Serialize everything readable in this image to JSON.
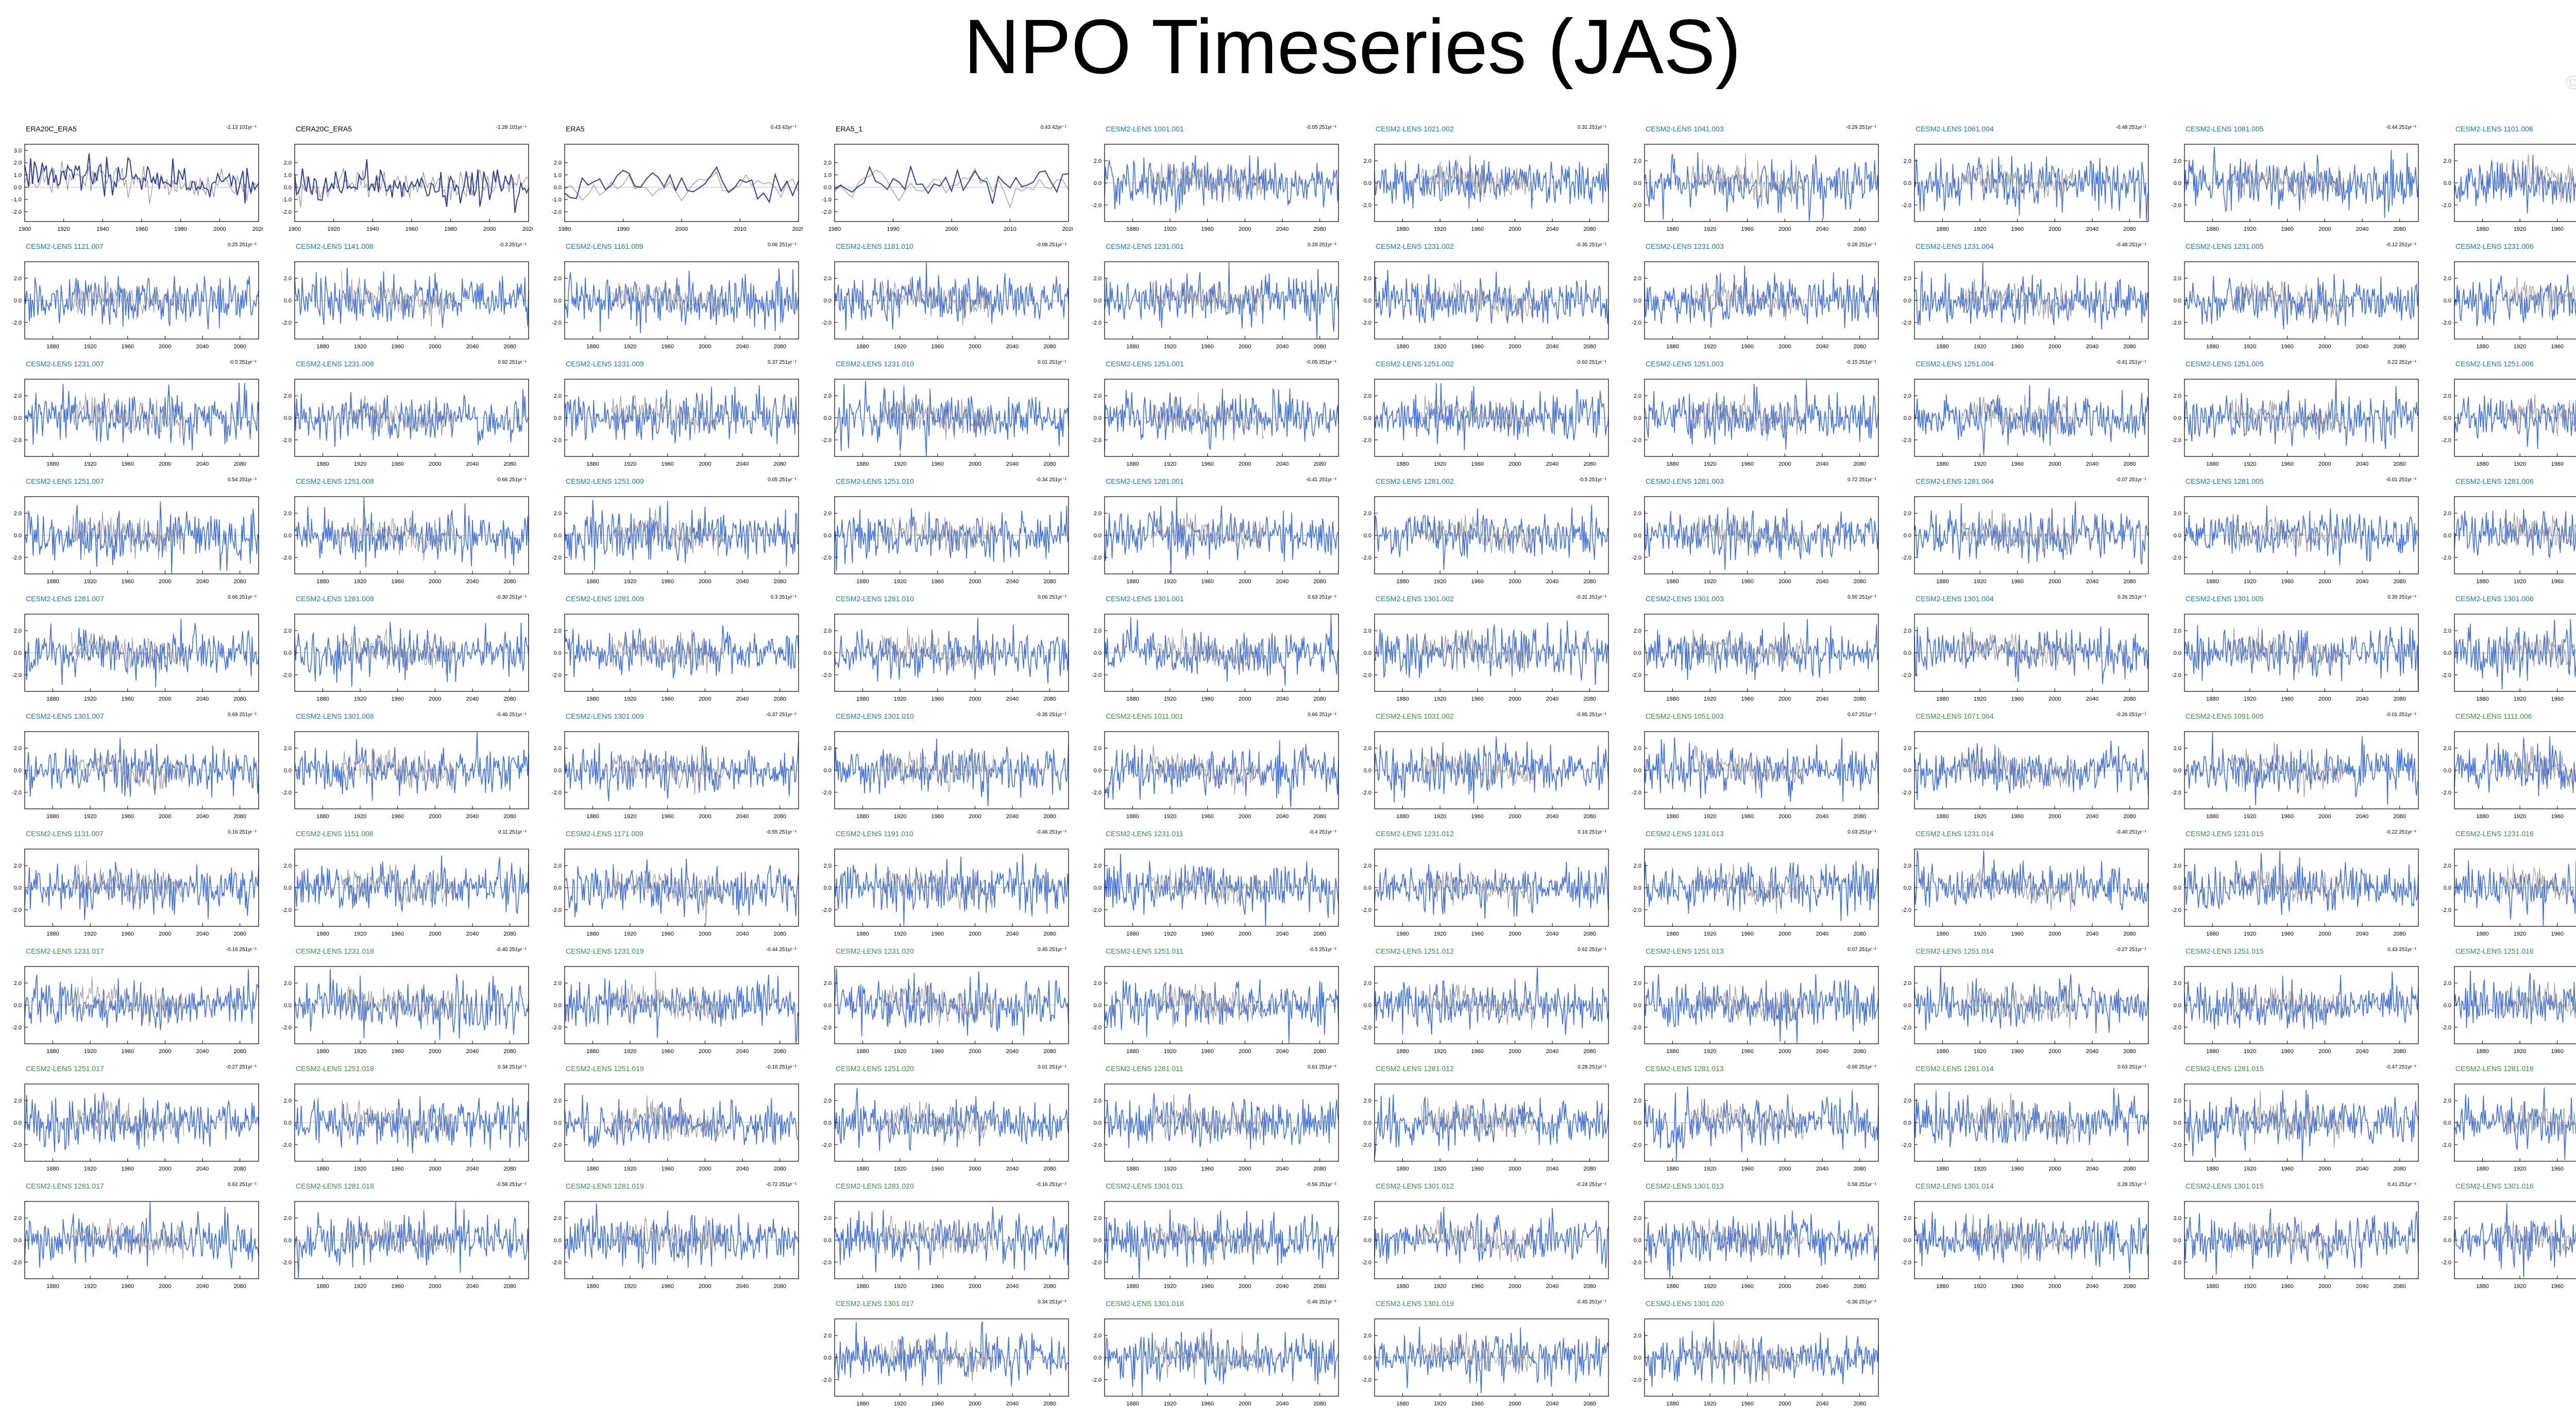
{
  "title": "NPO Timeseries (JAS)",
  "watermark": "© CVDP-LE",
  "colors": {
    "model": "#3f6fe0",
    "obs_model": "#2a3d9e",
    "overlay": "#909090",
    "zero": "#bdbdbd",
    "axis": "#000000"
  },
  "trend_unit": "51yr⁻¹",
  "chart_data": {
    "type": "line",
    "layout": "panel-grid",
    "panels": [
      {
        "name": "ERA20C_ERA5",
        "trend": "-2.13 101yr⁻¹",
        "xlim": [
          1900,
          2020
        ],
        "xticks": [
          1900,
          1920,
          1940,
          1960,
          1980,
          2000,
          2020
        ],
        "yticks": [
          -2.0,
          -1.0,
          0.0,
          1.0,
          2.0,
          3.0
        ],
        "style": "obs",
        "group": "obs",
        "row": 0,
        "col": 0
      },
      {
        "name": "CERA20C_ERA5",
        "trend": "-1.28 101yr⁻¹",
        "xlim": [
          1900,
          2020
        ],
        "xticks": [
          1900,
          1920,
          1940,
          1960,
          1980,
          2000,
          2020
        ],
        "yticks": [
          -2.0,
          -1.0,
          0.0,
          1.0,
          2.0
        ],
        "style": "obs",
        "group": "obs",
        "row": 0,
        "col": 1
      },
      {
        "name": "ERA5",
        "trend": "0.43 42yr⁻¹",
        "xlim": [
          1980,
          2020
        ],
        "xticks": [
          1980,
          1990,
          2000,
          2010,
          2020
        ],
        "yticks": [
          -2.0,
          -1.0,
          0.0,
          1.0,
          2.0
        ],
        "style": "obs",
        "group": "obs",
        "row": 0,
        "col": 2
      },
      {
        "name": "ERA5_1",
        "trend": "0.43 42yr⁻¹",
        "xlim": [
          1980,
          2020
        ],
        "xticks": [
          1980,
          1990,
          2000,
          2010,
          2020
        ],
        "yticks": [
          -2.0,
          -1.0,
          0.0,
          1.0,
          2.0
        ],
        "style": "obs",
        "group": "obs",
        "row": 0,
        "col": 3
      },
      {
        "name": "CESM2-LENS 1001.001",
        "trend": "-0.05 251yr⁻¹",
        "group": "teal",
        "row": 0,
        "col": 4
      },
      {
        "name": "CESM2-LENS 1021.002",
        "trend": "0.31 251yr⁻¹",
        "group": "teal",
        "row": 0,
        "col": 5
      },
      {
        "name": "CESM2-LENS 1041.003",
        "trend": "-0.29 251yr⁻¹",
        "group": "teal",
        "row": 0,
        "col": 6
      },
      {
        "name": "CESM2-LENS 1061.004",
        "trend": "-0.48 251yr⁻¹",
        "group": "teal",
        "row": 0,
        "col": 7
      },
      {
        "name": "CESM2-LENS 1081.005",
        "trend": "-0.44 251yr⁻¹",
        "group": "teal",
        "row": 0,
        "col": 8
      },
      {
        "name": "CESM2-LENS 1101.006",
        "trend": "-0.42 251yr⁻¹",
        "group": "teal",
        "row": 0,
        "col": 9
      },
      {
        "name": "CESM2-LENS 1121.007",
        "trend": "0.25 251yr⁻¹",
        "group": "teal",
        "row": 1,
        "col": 0
      },
      {
        "name": "CESM2-LENS 1141.008",
        "trend": "-0.3 251yr⁻¹",
        "group": "teal",
        "row": 1,
        "col": 1
      },
      {
        "name": "CESM2-LENS 1161.009",
        "trend": "0.06 251yr⁻¹",
        "group": "teal",
        "row": 1,
        "col": 2
      },
      {
        "name": "CESM2-LENS 1181.010",
        "trend": "-0.08 251yr⁻¹",
        "group": "teal",
        "row": 1,
        "col": 3
      },
      {
        "name": "CESM2-LENS 1231.001",
        "trend": "0.28 251yr⁻¹",
        "group": "teal",
        "row": 1,
        "col": 4
      },
      {
        "name": "CESM2-LENS 1231.002",
        "trend": "-0.35 251yr⁻¹",
        "group": "teal",
        "row": 1,
        "col": 5
      },
      {
        "name": "CESM2-LENS 1231.003",
        "trend": "0.28 251yr⁻¹",
        "group": "teal",
        "row": 1,
        "col": 6
      },
      {
        "name": "CESM2-LENS 1231.004",
        "trend": "-0.48 251yr⁻¹",
        "group": "teal",
        "row": 1,
        "col": 7
      },
      {
        "name": "CESM2-LENS 1231.005",
        "trend": "-0.12 251yr⁻¹",
        "group": "teal",
        "row": 1,
        "col": 8
      },
      {
        "name": "CESM2-LENS 1231.006",
        "trend": "0.4 251yr⁻¹",
        "group": "teal",
        "row": 1,
        "col": 9
      },
      {
        "name": "CESM2-LENS 1231.007",
        "trend": "-0.5 251yr⁻¹",
        "group": "teal",
        "row": 2,
        "col": 0
      },
      {
        "name": "CESM2-LENS 1231.008",
        "trend": "0.92 251yr⁻¹",
        "group": "teal",
        "row": 2,
        "col": 1
      },
      {
        "name": "CESM2-LENS 1231.009",
        "trend": "0.37 251yr⁻¹",
        "group": "teal",
        "row": 2,
        "col": 2
      },
      {
        "name": "CESM2-LENS 1231.010",
        "trend": "0.01 251yr⁻¹",
        "group": "teal",
        "row": 2,
        "col": 3
      },
      {
        "name": "CESM2-LENS 1251.001",
        "trend": "-0.05 251yr⁻¹",
        "group": "teal",
        "row": 2,
        "col": 4
      },
      {
        "name": "CESM2-LENS 1251.002",
        "trend": "-0.60 251yr⁻¹",
        "group": "teal",
        "row": 2,
        "col": 5
      },
      {
        "name": "CESM2-LENS 1251.003",
        "trend": "-0.15 251yr⁻¹",
        "group": "teal",
        "row": 2,
        "col": 6
      },
      {
        "name": "CESM2-LENS 1251.004",
        "trend": "-0.41 251yr⁻¹",
        "group": "teal",
        "row": 2,
        "col": 7
      },
      {
        "name": "CESM2-LENS 1251.005",
        "trend": "0.22 251yr⁻¹",
        "group": "teal",
        "row": 2,
        "col": 8
      },
      {
        "name": "CESM2-LENS 1251.006",
        "trend": "0.22 251yr⁻¹",
        "group": "teal",
        "row": 2,
        "col": 9
      },
      {
        "name": "CESM2-LENS 1251.007",
        "trend": "0.54 251yr⁻¹",
        "group": "teal",
        "row": 3,
        "col": 0
      },
      {
        "name": "CESM2-LENS 1251.008",
        "trend": "-0.66 251yr⁻¹",
        "group": "teal",
        "row": 3,
        "col": 1
      },
      {
        "name": "CESM2-LENS 1251.009",
        "trend": "0.05 251yr⁻¹",
        "group": "teal",
        "row": 3,
        "col": 2
      },
      {
        "name": "CESM2-LENS 1251.010",
        "trend": "-0.34 251yr⁻¹",
        "group": "teal",
        "row": 3,
        "col": 3
      },
      {
        "name": "CESM2-LENS 1281.001",
        "trend": "-0.41 251yr⁻¹",
        "group": "teal",
        "row": 3,
        "col": 4
      },
      {
        "name": "CESM2-LENS 1281.002",
        "trend": "-0.5 251yr⁻¹",
        "group": "teal",
        "row": 3,
        "col": 5
      },
      {
        "name": "CESM2-LENS 1281.003",
        "trend": "0.72 251yr⁻¹",
        "group": "teal",
        "row": 3,
        "col": 6
      },
      {
        "name": "CESM2-LENS 1281.004",
        "trend": "-0.07 251yr⁻¹",
        "group": "teal",
        "row": 3,
        "col": 7
      },
      {
        "name": "CESM2-LENS 1281.005",
        "trend": "-0.01 251yr⁻¹",
        "group": "teal",
        "row": 3,
        "col": 8
      },
      {
        "name": "CESM2-LENS 1281.006",
        "trend": "-0.16 251yr⁻¹",
        "group": "teal",
        "row": 3,
        "col": 9
      },
      {
        "name": "CESM2-LENS 1281.007",
        "trend": "0.66 251yr⁻¹",
        "group": "teal",
        "row": 4,
        "col": 0
      },
      {
        "name": "CESM2-LENS 1281.008",
        "trend": "-0.30 251yr⁻¹",
        "group": "teal",
        "row": 4,
        "col": 1
      },
      {
        "name": "CESM2-LENS 1281.009",
        "trend": "0.3 251yr⁻¹",
        "group": "teal",
        "row": 4,
        "col": 2
      },
      {
        "name": "CESM2-LENS 1281.010",
        "trend": "0.06 251yr⁻¹",
        "group": "teal",
        "row": 4,
        "col": 3
      },
      {
        "name": "CESM2-LENS 1301.001",
        "trend": "0.63 251yr⁻¹",
        "group": "teal",
        "row": 4,
        "col": 4
      },
      {
        "name": "CESM2-LENS 1301.002",
        "trend": "-0.31 251yr⁻¹",
        "group": "teal",
        "row": 4,
        "col": 5
      },
      {
        "name": "CESM2-LENS 1301.003",
        "trend": "0.50 251yr⁻¹",
        "group": "teal",
        "row": 4,
        "col": 6
      },
      {
        "name": "CESM2-LENS 1301.004",
        "trend": "0.26 251yr⁻¹",
        "group": "teal",
        "row": 4,
        "col": 7
      },
      {
        "name": "CESM2-LENS 1301.005",
        "trend": "0.35 251yr⁻¹",
        "group": "teal",
        "row": 4,
        "col": 8
      },
      {
        "name": "CESM2-LENS 1301.006",
        "trend": "0.7 251yr⁻¹",
        "group": "teal",
        "row": 4,
        "col": 9
      },
      {
        "name": "CESM2-LENS 1301.007",
        "trend": "0.69 251yr⁻¹",
        "group": "teal",
        "row": 5,
        "col": 0
      },
      {
        "name": "CESM2-LENS 1301.008",
        "trend": "-0.46 251yr⁻¹",
        "group": "teal",
        "row": 5,
        "col": 1
      },
      {
        "name": "CESM2-LENS 1301.009",
        "trend": "-0.37 251yr⁻¹",
        "group": "teal",
        "row": 5,
        "col": 2
      },
      {
        "name": "CESM2-LENS 1301.010",
        "trend": "-0.35 251yr⁻¹",
        "group": "teal",
        "row": 5,
        "col": 3
      },
      {
        "name": "CESM2-LENS 1011.001",
        "trend": "0.66 251yr⁻¹",
        "group": "green",
        "row": 5,
        "col": 4
      },
      {
        "name": "CESM2-LENS 1031.002",
        "trend": "-0.85 251yr⁻¹",
        "group": "green",
        "row": 5,
        "col": 5
      },
      {
        "name": "CESM2-LENS 1051.003",
        "trend": "0.67 251yr⁻¹",
        "group": "green",
        "row": 5,
        "col": 6
      },
      {
        "name": "CESM2-LENS 1071.004",
        "trend": "-0.26 251yr⁻¹",
        "group": "green",
        "row": 5,
        "col": 7
      },
      {
        "name": "CESM2-LENS 1091.005",
        "trend": "-0.01 251yr⁻¹",
        "group": "green",
        "row": 5,
        "col": 8
      },
      {
        "name": "CESM2-LENS 1111.006",
        "trend": "-0.09 251yr⁻¹",
        "group": "green",
        "row": 5,
        "col": 9
      },
      {
        "name": "CESM2-LENS 1131.007",
        "trend": "0.16 251yr⁻¹",
        "group": "green",
        "row": 6,
        "col": 0
      },
      {
        "name": "CESM2-LENS 1151.008",
        "trend": "0.11 251yr⁻¹",
        "group": "green",
        "row": 6,
        "col": 1
      },
      {
        "name": "CESM2-LENS 1171.009",
        "trend": "-0.55 251yr⁻¹",
        "group": "green",
        "row": 6,
        "col": 2
      },
      {
        "name": "CESM2-LENS 1191.010",
        "trend": "-0.46 251yr⁻¹",
        "group": "green",
        "row": 6,
        "col": 3
      },
      {
        "name": "CESM2-LENS 1231.011",
        "trend": "-0.4 251yr⁻¹",
        "group": "green",
        "row": 6,
        "col": 4
      },
      {
        "name": "CESM2-LENS 1231.012",
        "trend": "0.16 251yr⁻¹",
        "group": "green",
        "row": 6,
        "col": 5
      },
      {
        "name": "CESM2-LENS 1231.013",
        "trend": "0.03 251yr⁻¹",
        "group": "green",
        "row": 6,
        "col": 6
      },
      {
        "name": "CESM2-LENS 1231.014",
        "trend": "-0.40 251yr⁻¹",
        "group": "green",
        "row": 6,
        "col": 7
      },
      {
        "name": "CESM2-LENS 1231.015",
        "trend": "-0.22 251yr⁻¹",
        "group": "green",
        "row": 6,
        "col": 8
      },
      {
        "name": "CESM2-LENS 1231.016",
        "trend": "-0.01 251yr⁻¹",
        "group": "green",
        "row": 6,
        "col": 9
      },
      {
        "name": "CESM2-LENS 1231.017",
        "trend": "-0.16 251yr⁻¹",
        "group": "green",
        "row": 7,
        "col": 0
      },
      {
        "name": "CESM2-LENS 1231.018",
        "trend": "-0.40 251yr⁻¹",
        "group": "green",
        "row": 7,
        "col": 1
      },
      {
        "name": "CESM2-LENS 1231.019",
        "trend": "-0.44 251yr⁻¹",
        "group": "green",
        "row": 7,
        "col": 2
      },
      {
        "name": "CESM2-LENS 1231.020",
        "trend": "0.45 251yr⁻¹",
        "group": "green",
        "row": 7,
        "col": 3
      },
      {
        "name": "CESM2-LENS 1251.011",
        "trend": "-0.5 251yr⁻¹",
        "group": "green",
        "row": 7,
        "col": 4
      },
      {
        "name": "CESM2-LENS 1251.012",
        "trend": "0.62 251yr⁻¹",
        "group": "green",
        "row": 7,
        "col": 5
      },
      {
        "name": "CESM2-LENS 1251.013",
        "trend": "0.07 251yr⁻¹",
        "group": "green",
        "row": 7,
        "col": 6
      },
      {
        "name": "CESM2-LENS 1251.014",
        "trend": "-0.27 251yr⁻¹",
        "group": "green",
        "row": 7,
        "col": 7
      },
      {
        "name": "CESM2-LENS 1251.015",
        "trend": "0.43 251yr⁻¹",
        "group": "green",
        "row": 7,
        "col": 8
      },
      {
        "name": "CESM2-LENS 1251.016",
        "trend": "-0.32 251yr⁻¹",
        "group": "green",
        "row": 7,
        "col": 9
      },
      {
        "name": "CESM2-LENS 1251.017",
        "trend": "-0.27 251yr⁻¹",
        "group": "green",
        "row": 8,
        "col": 0
      },
      {
        "name": "CESM2-LENS 1251.018",
        "trend": "0.34 251yr⁻¹",
        "group": "green",
        "row": 8,
        "col": 1
      },
      {
        "name": "CESM2-LENS 1251.019",
        "trend": "-0.16 251yr⁻¹",
        "group": "green",
        "row": 8,
        "col": 2
      },
      {
        "name": "CESM2-LENS 1251.020",
        "trend": "0.01 251yr⁻¹",
        "group": "green",
        "row": 8,
        "col": 3
      },
      {
        "name": "CESM2-LENS 1281.011",
        "trend": "0.61 251yr⁻¹",
        "group": "green",
        "row": 8,
        "col": 4
      },
      {
        "name": "CESM2-LENS 1281.012",
        "trend": "0.28 251yr⁻¹",
        "group": "green",
        "row": 8,
        "col": 5
      },
      {
        "name": "CESM2-LENS 1281.013",
        "trend": "-0.66 251yr⁻¹",
        "group": "green",
        "row": 8,
        "col": 6
      },
      {
        "name": "CESM2-LENS 1281.014",
        "trend": "0.63 251yr⁻¹",
        "group": "green",
        "row": 8,
        "col": 7
      },
      {
        "name": "CESM2-LENS 1281.015",
        "trend": "-0.47 251yr⁻¹",
        "group": "green",
        "row": 8,
        "col": 8
      },
      {
        "name": "CESM2-LENS 1281.016",
        "trend": "0.78 251yr⁻¹",
        "group": "green",
        "row": 8,
        "col": 9
      },
      {
        "name": "CESM2-LENS 1281.017",
        "trend": "0.62 251yr⁻¹",
        "group": "green",
        "row": 9,
        "col": 0
      },
      {
        "name": "CESM2-LENS 1281.018",
        "trend": "-0.58 251yr⁻¹",
        "group": "green",
        "row": 9,
        "col": 1
      },
      {
        "name": "CESM2-LENS 1281.019",
        "trend": "-0.72 251yr⁻¹",
        "group": "green",
        "row": 9,
        "col": 2
      },
      {
        "name": "CESM2-LENS 1281.020",
        "trend": "-0.16 251yr⁻¹",
        "group": "green",
        "row": 9,
        "col": 3
      },
      {
        "name": "CESM2-LENS 1301.011",
        "trend": "-0.56 251yr⁻¹",
        "group": "green",
        "row": 9,
        "col": 4
      },
      {
        "name": "CESM2-LENS 1301.012",
        "trend": "-0.24 251yr⁻¹",
        "group": "green",
        "row": 9,
        "col": 5
      },
      {
        "name": "CESM2-LENS 1301.013",
        "trend": "0.58 251yr⁻¹",
        "group": "green",
        "row": 9,
        "col": 6
      },
      {
        "name": "CESM2-LENS 1301.014",
        "trend": "0.28 251yr⁻¹",
        "group": "green",
        "row": 9,
        "col": 7
      },
      {
        "name": "CESM2-LENS 1301.015",
        "trend": "0.41 251yr⁻¹",
        "group": "green",
        "row": 9,
        "col": 8
      },
      {
        "name": "CESM2-LENS 1301.016",
        "trend": "0.64 251yr⁻¹",
        "group": "green",
        "row": 9,
        "col": 9
      },
      {
        "name": "CESM2-LENS 1301.017",
        "trend": "0.34 251yr⁻¹",
        "group": "green",
        "row": 10,
        "col": 3
      },
      {
        "name": "CESM2-LENS 1301.018",
        "trend": "-0.46 251yr⁻¹",
        "group": "green",
        "row": 10,
        "col": 4
      },
      {
        "name": "CESM2-LENS 1301.019",
        "trend": "-0.45 251yr⁻¹",
        "group": "green",
        "row": 10,
        "col": 5
      },
      {
        "name": "CESM2-LENS 1301.020",
        "trend": "-0.36 251yr⁻¹",
        "group": "green",
        "row": 10,
        "col": 6
      }
    ],
    "model_defaults": {
      "xlim": [
        1850,
        2100
      ],
      "xticks": [
        1880,
        1920,
        1960,
        2000,
        2040,
        2080
      ],
      "yticks": [
        -2.0,
        0.0,
        2.0
      ],
      "ylim": [
        -3.5,
        3.5
      ]
    },
    "obs_ylim": [
      -2.8,
      3.5
    ],
    "grid": false,
    "legend": "none"
  }
}
